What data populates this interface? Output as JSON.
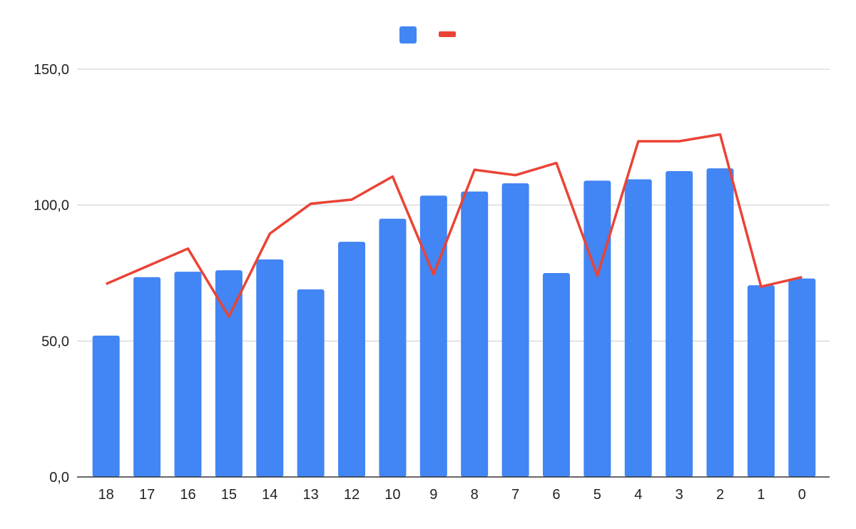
{
  "chart_data": {
    "type": "bar",
    "categories": [
      "18",
      "17",
      "16",
      "15",
      "14",
      "13",
      "12",
      "10",
      "9",
      "8",
      "7",
      "6",
      "5",
      "4",
      "3",
      "2",
      "1",
      "0"
    ],
    "series": [
      {
        "type": "bar",
        "color": "#4285F4",
        "values": [
          52,
          73.5,
          75.5,
          76,
          80,
          69,
          86.5,
          95,
          103.5,
          105,
          108,
          75,
          109,
          109.5,
          112.5,
          113.5,
          70.5,
          73
        ]
      },
      {
        "type": "line",
        "color": "#EA4335",
        "values": [
          71,
          77.5,
          84,
          59,
          89.5,
          100.5,
          102,
          110.5,
          74.5,
          113,
          111,
          115.5,
          74,
          123.5,
          123.5,
          126,
          70,
          73.5
        ]
      }
    ],
    "y_ticks": [
      "0,0",
      "50,0",
      "100,0",
      "150,0"
    ],
    "y_tick_values": [
      0,
      50,
      100,
      150
    ],
    "ylim": [
      0,
      150
    ],
    "grid": true,
    "legend_position": "top"
  }
}
